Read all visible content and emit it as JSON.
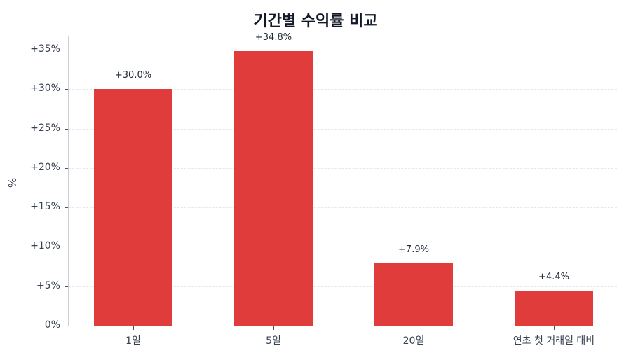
{
  "chart_data": {
    "type": "bar",
    "title": "기간별 수익률 비교",
    "xlabel": "",
    "ylabel": "%",
    "categories": [
      "1일",
      "5일",
      "20일",
      "연초 첫 거래일 대비"
    ],
    "values": [
      30.0,
      34.8,
      7.9,
      4.4
    ],
    "value_labels": [
      "+30.0%",
      "+34.8%",
      "+7.9%",
      "+4.4%"
    ],
    "ylim": [
      0,
      36.5
    ],
    "yticks": [
      0,
      5,
      10,
      15,
      20,
      25,
      30,
      35
    ],
    "ytick_labels": [
      "0%",
      "+5%",
      "+10%",
      "+15%",
      "+20%",
      "+25%",
      "+30%",
      "+35%"
    ],
    "grid": "horizontal dashed",
    "legend": null,
    "bar_color": "#e03c3c"
  }
}
